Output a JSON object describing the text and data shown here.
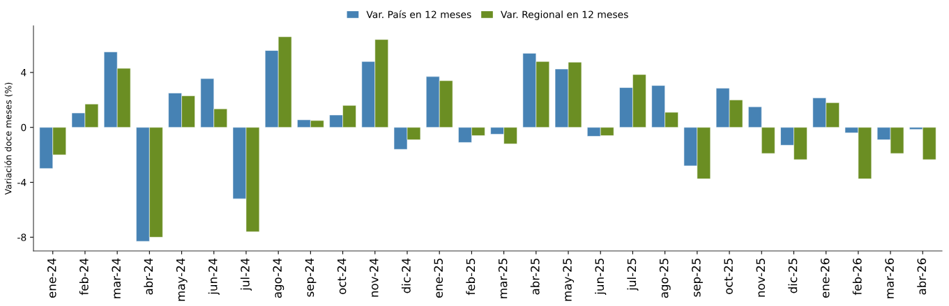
{
  "chart_data": {
    "type": "bar",
    "ylabel": "Variación doce meses (%)",
    "categories": [
      "ene-24",
      "feb-24",
      "mar-24",
      "abr-24",
      "may-24",
      "jun-24",
      "jul-24",
      "ago-24",
      "sep-24",
      "oct-24",
      "nov-24",
      "dic-24",
      "ene-25",
      "feb-25",
      "mar-25",
      "abr-25",
      "may-25",
      "jun-25",
      "jul-25",
      "ago-25",
      "sep-25",
      "oct-25",
      "nov-25",
      "dic-25",
      "ene-26",
      "feb-26",
      "mar-26",
      "abr-26"
    ],
    "series": [
      {
        "name": "Var. País en 12 meses",
        "color": "#4682b4",
        "values": [
          -3.0,
          1.05,
          5.5,
          -8.3,
          2.5,
          3.55,
          -5.2,
          5.6,
          0.55,
          0.9,
          4.8,
          -1.6,
          3.7,
          -1.1,
          -0.5,
          5.4,
          4.25,
          -0.65,
          2.9,
          3.05,
          -2.8,
          2.85,
          1.5,
          -1.3,
          2.15,
          -0.4,
          -0.9,
          -0.15
        ]
      },
      {
        "name": "Var. Regional en 12 meses",
        "color": "#6b8e23",
        "values": [
          -2.0,
          1.7,
          4.3,
          -8.0,
          2.3,
          1.35,
          -7.6,
          6.6,
          0.5,
          1.6,
          6.4,
          -0.9,
          3.4,
          -0.6,
          -1.2,
          4.8,
          4.75,
          -0.6,
          3.85,
          1.1,
          -3.75,
          2.0,
          -1.9,
          -2.35,
          1.8,
          -3.75,
          -1.9,
          -2.35
        ]
      }
    ],
    "ylim": [
      -9.0,
      7.4
    ],
    "yticks": [
      {
        "value": -8,
        "label": "-8"
      },
      {
        "value": -4,
        "label": "-4"
      },
      0,
      4
    ],
    "grid": false,
    "legend": "top"
  }
}
